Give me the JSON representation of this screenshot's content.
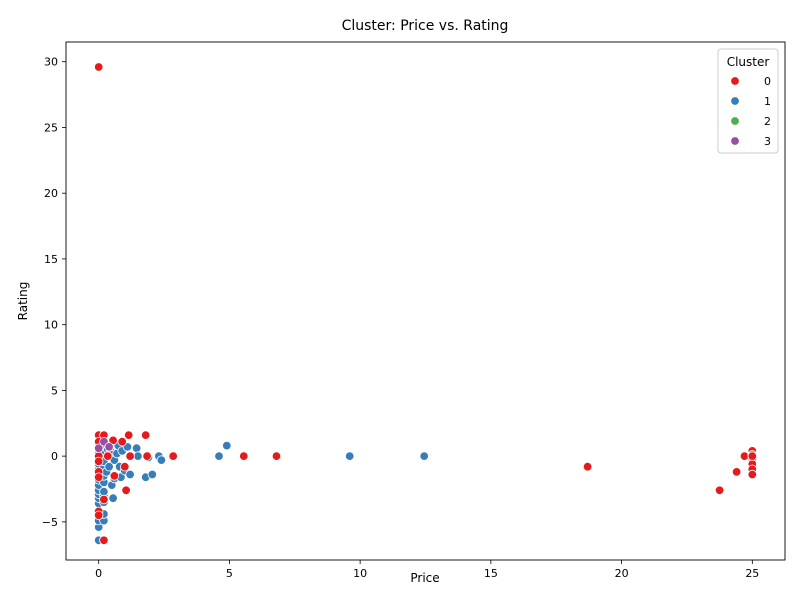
{
  "chart_data": {
    "type": "scatter",
    "title": "Cluster: Price vs. Rating",
    "xlabel": "Price",
    "ylabel": "Rating",
    "xlim": [
      -1.25,
      26.25
    ],
    "ylim": [
      -7.9,
      31.5
    ],
    "xticks": [
      0,
      5,
      10,
      15,
      20,
      25
    ],
    "yticks": [
      -5,
      0,
      5,
      10,
      15,
      20,
      25,
      30
    ],
    "xtick_labels": [
      "0",
      "5",
      "10",
      "15",
      "20",
      "25"
    ],
    "ytick_labels": [
      "−5",
      "0",
      "5",
      "10",
      "15",
      "20",
      "25",
      "30"
    ],
    "grid": false,
    "legend": {
      "title": "Cluster",
      "placement": "top-right",
      "entries": [
        {
          "label": "0",
          "color": "#e41a1c"
        },
        {
          "label": "1",
          "color": "#377eb8"
        },
        {
          "label": "2",
          "color": "#4daf4a"
        },
        {
          "label": "3",
          "color": "#984ea3"
        }
      ]
    },
    "series": [
      {
        "cluster": 1,
        "color": "#377eb8",
        "points": [
          [
            0,
            -6.4
          ],
          [
            0,
            -5.4
          ],
          [
            0,
            -4.9
          ],
          [
            0,
            -4.3
          ],
          [
            0,
            -3.6
          ],
          [
            0,
            -3.2
          ],
          [
            0,
            -2.9
          ],
          [
            0,
            -2.6
          ],
          [
            0,
            -2.2
          ],
          [
            0,
            -1.8
          ],
          [
            0,
            -1.4
          ],
          [
            0,
            -1.0
          ],
          [
            0,
            -0.6
          ],
          [
            0,
            -0.2
          ],
          [
            0,
            0.2
          ],
          [
            0,
            0.6
          ],
          [
            0.05,
            0.0
          ],
          [
            0.1,
            -0.3
          ],
          [
            0.1,
            0.9
          ],
          [
            0.2,
            -6.4
          ],
          [
            0.2,
            -4.9
          ],
          [
            0.2,
            -4.4
          ],
          [
            0.2,
            -3.5
          ],
          [
            0.2,
            -3.0
          ],
          [
            0.2,
            -2.7
          ],
          [
            0.2,
            -2.0
          ],
          [
            0.2,
            -1.5
          ],
          [
            0.2,
            -0.9
          ],
          [
            0.2,
            -0.4
          ],
          [
            0.2,
            0.2
          ],
          [
            0.2,
            0.8
          ],
          [
            0.2,
            1.3
          ],
          [
            0.3,
            -1.2
          ],
          [
            0.35,
            0.5
          ],
          [
            0.4,
            -0.8
          ],
          [
            0.45,
            0.4
          ],
          [
            0.5,
            -2.2
          ],
          [
            0.5,
            0.1
          ],
          [
            0.55,
            -3.2
          ],
          [
            0.6,
            -1.7
          ],
          [
            0.6,
            -0.3
          ],
          [
            0.7,
            0.2
          ],
          [
            0.75,
            0.8
          ],
          [
            0.8,
            -0.8
          ],
          [
            0.85,
            -1.6
          ],
          [
            0.9,
            0.4
          ],
          [
            1.0,
            -1.1
          ],
          [
            1.1,
            0.7
          ],
          [
            1.2,
            -1.4
          ],
          [
            1.45,
            0.6
          ],
          [
            1.5,
            0.0
          ],
          [
            1.8,
            -1.6
          ],
          [
            1.9,
            -0.1
          ],
          [
            2.05,
            -1.4
          ],
          [
            2.3,
            0.0
          ],
          [
            2.4,
            -0.3
          ],
          [
            4.6,
            0.0
          ],
          [
            4.9,
            0.8
          ],
          [
            9.6,
            0.0
          ],
          [
            12.45,
            0.0
          ]
        ]
      },
      {
        "cluster": 0,
        "color": "#e41a1c",
        "points": [
          [
            0,
            29.6
          ],
          [
            0,
            1.6
          ],
          [
            0,
            1.1
          ],
          [
            0,
            0.0
          ],
          [
            0,
            -0.4
          ],
          [
            0,
            -1.2
          ],
          [
            0,
            -1.6
          ],
          [
            0,
            -4.2
          ],
          [
            0,
            -4.5
          ],
          [
            0.2,
            -6.4
          ],
          [
            0.2,
            -3.3
          ],
          [
            0.2,
            1.6
          ],
          [
            0.35,
            0.0
          ],
          [
            0.55,
            1.2
          ],
          [
            0.6,
            -1.5
          ],
          [
            0.9,
            1.1
          ],
          [
            1.0,
            -0.8
          ],
          [
            1.05,
            -2.6
          ],
          [
            1.15,
            1.6
          ],
          [
            1.2,
            0.0
          ],
          [
            1.8,
            1.6
          ],
          [
            1.85,
            0.0
          ],
          [
            2.85,
            0.0
          ],
          [
            5.55,
            0.0
          ],
          [
            6.8,
            0.0
          ],
          [
            18.7,
            -0.8
          ],
          [
            23.75,
            -2.6
          ],
          [
            24.4,
            -1.2
          ],
          [
            24.7,
            0.0
          ],
          [
            25.0,
            0.4
          ],
          [
            25.0,
            0.1
          ],
          [
            25.0,
            -0.2
          ],
          [
            25.0,
            -0.6
          ],
          [
            25.0,
            -1.0
          ],
          [
            25.0,
            -1.4
          ],
          [
            25.0,
            0.0
          ]
        ]
      },
      {
        "cluster": 3,
        "color": "#984ea3",
        "points": [
          [
            0,
            0.6
          ],
          [
            0.2,
            1.1
          ],
          [
            0.4,
            0.7
          ]
        ]
      }
    ]
  }
}
